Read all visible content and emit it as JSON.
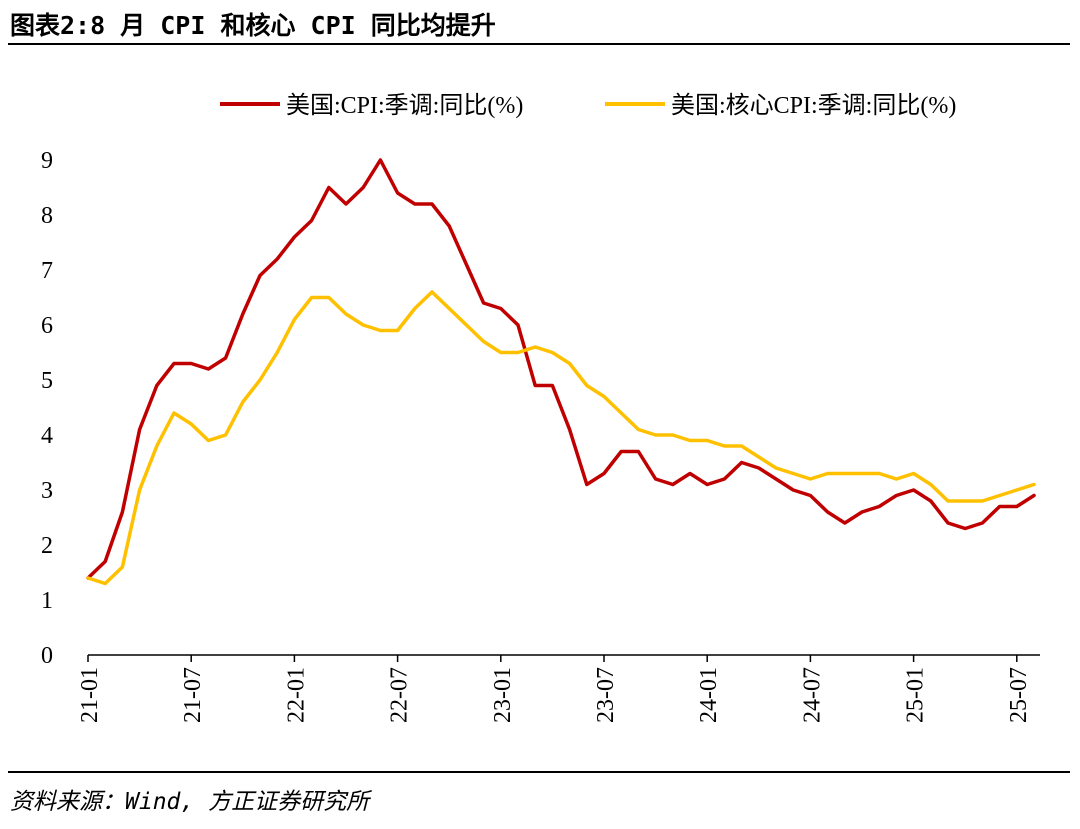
{
  "header": {
    "title": "图表2:8 月 CPI 和核心 CPI 同比均提升"
  },
  "footer": {
    "source": "资料来源：Wind, 方正证券研究所"
  },
  "colors": {
    "cpi": "#C00000",
    "core": "#FFC000",
    "axis": "#000000"
  },
  "chart_data": {
    "type": "line",
    "title": "",
    "xlabel": "",
    "ylabel": "",
    "ylim": [
      0,
      9
    ],
    "yticks": [
      "0",
      "1",
      "2",
      "3",
      "4",
      "5",
      "6",
      "7",
      "8",
      "9"
    ],
    "x_tick_labels": [
      "21-01",
      "21-07",
      "22-01",
      "22-07",
      "23-01",
      "23-07",
      "24-01",
      "24-07",
      "25-01",
      "25-07"
    ],
    "legend_position": "top",
    "series": [
      {
        "name": "美国:CPI:季调:同比(%)",
        "values": [
          1.4,
          1.7,
          2.6,
          4.1,
          4.9,
          5.3,
          5.3,
          5.2,
          5.4,
          6.2,
          6.9,
          7.2,
          7.6,
          7.9,
          8.5,
          8.2,
          8.5,
          9.0,
          8.4,
          8.2,
          8.2,
          7.8,
          7.1,
          6.4,
          6.3,
          6.0,
          4.9,
          4.9,
          4.1,
          3.1,
          3.3,
          3.7,
          3.7,
          3.2,
          3.1,
          3.3,
          3.1,
          3.2,
          3.5,
          3.4,
          3.2,
          3.0,
          2.9,
          2.6,
          2.4,
          2.6,
          2.7,
          2.9,
          3.0,
          2.8,
          2.4,
          2.3,
          2.4,
          2.7,
          2.7,
          2.9
        ]
      },
      {
        "name": "美国:核心CPI:季调:同比(%)",
        "values": [
          1.4,
          1.3,
          1.6,
          3.0,
          3.8,
          4.4,
          4.2,
          3.9,
          4.0,
          4.6,
          5.0,
          5.5,
          6.1,
          6.5,
          6.5,
          6.2,
          6.0,
          5.9,
          5.9,
          6.3,
          6.6,
          6.3,
          6.0,
          5.7,
          5.5,
          5.5,
          5.6,
          5.5,
          5.3,
          4.9,
          4.7,
          4.4,
          4.1,
          4.0,
          4.0,
          3.9,
          3.9,
          3.8,
          3.8,
          3.6,
          3.4,
          3.3,
          3.2,
          3.3,
          3.3,
          3.3,
          3.3,
          3.2,
          3.3,
          3.1,
          2.8,
          2.8,
          2.8,
          2.9,
          3.0,
          3.1
        ]
      }
    ]
  }
}
